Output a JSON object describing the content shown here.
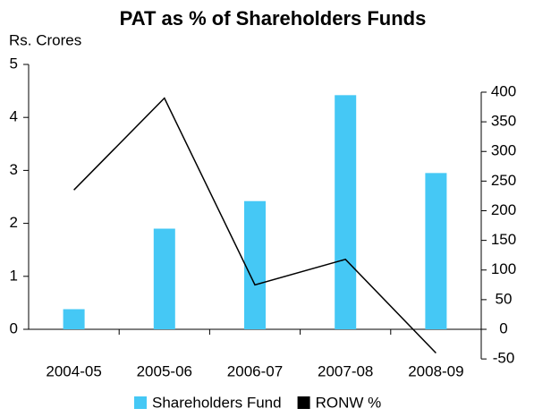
{
  "chart_data": {
    "type": "bar_line",
    "title": "PAT as % of Shareholders Funds",
    "y_label": "Rs. Crores",
    "categories": [
      "2004-05",
      "2005-06",
      "2006-07",
      "2007-08",
      "2008-09"
    ],
    "series": [
      {
        "name": "Shareholders Fund",
        "color": "#45c8f5",
        "type": "bar",
        "values": [
          0.38,
          1.9,
          2.42,
          4.42,
          2.95
        ]
      },
      {
        "name": "RONW %",
        "color": "#000000",
        "type": "line",
        "axis": "y2",
        "values": [
          235,
          390,
          75,
          118,
          -40
        ]
      }
    ],
    "ylim": [
      0,
      5
    ],
    "yticks": [
      0,
      1,
      2,
      3,
      4,
      5
    ],
    "y2lim": [
      -50,
      400
    ],
    "y2ticks": [
      -50,
      0,
      50,
      100,
      150,
      200,
      250,
      300,
      350,
      400
    ],
    "legend": "bottom"
  }
}
